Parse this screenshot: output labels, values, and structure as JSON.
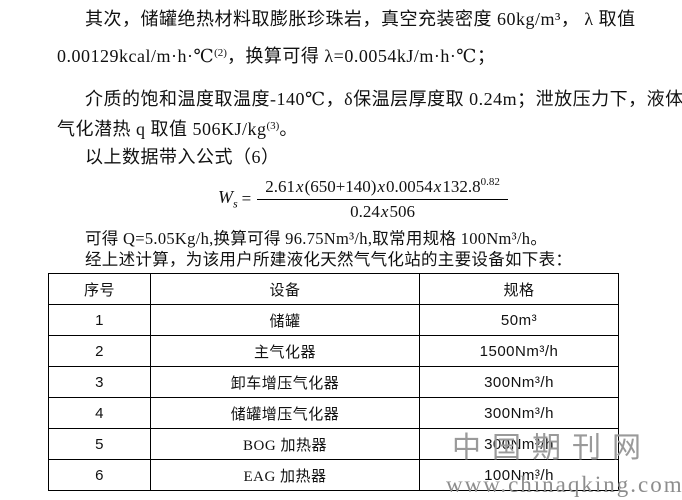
{
  "body": {
    "p1_line1": "其次，储罐绝热材料取膨胀珍珠岩，真空充装密度 60kg/m³， λ 取值",
    "p1_line2_pre": "0.00129kcal/m·h·℃",
    "p1_line2_sup": "(2)",
    "p1_line2_post": "，换算可得 λ=0.0054kJ/m·h·℃；",
    "p2_line1": "介质的饱和温度取温度-140℃，δ保温层厚度取 0.24m；泄放压力下，液体",
    "p2_line2_pre": "气化潜热 q 取值 506KJ/kg",
    "p2_line2_sup": "(3)",
    "p2_line2_post": "。",
    "p3": "以上数据带入公式（6）",
    "p4": "可得 Q=5.05Kg/h,换算可得 96.75Nm³/h,取常用规格 100Nm³/h。",
    "p5": "经上述计算，为该用户所建液化天然气气化站的主要设备如下表："
  },
  "formula": {
    "lhs": "W",
    "lhs_sub": "s",
    "eq": "=",
    "num": [
      "2.61",
      "x",
      "(650+140)",
      "x",
      "0.0054",
      "x",
      "132.8"
    ],
    "num_exp": "0.82",
    "den": [
      "0.24",
      "x",
      "506"
    ]
  },
  "table": {
    "headers": [
      "序号",
      "设备",
      "规格"
    ],
    "rows": [
      [
        "1",
        "储罐",
        "50m³"
      ],
      [
        "2",
        "主气化器",
        "1500Nm³/h"
      ],
      [
        "3",
        "卸车增压气化器",
        "300Nm³/h"
      ],
      [
        "4",
        "储罐增压气化器",
        "300Nm³/h"
      ],
      [
        "5",
        "BOG 加热器",
        "300Nm³/h"
      ],
      [
        "6",
        "EAG 加热器",
        "100Nm³/h"
      ]
    ]
  },
  "watermark": {
    "logo": "中国期刊网",
    "url": "www.chinaqking.com"
  },
  "colors": {
    "text": "#111111",
    "watermark": "#9a9a9a",
    "table_border": "#000000"
  }
}
